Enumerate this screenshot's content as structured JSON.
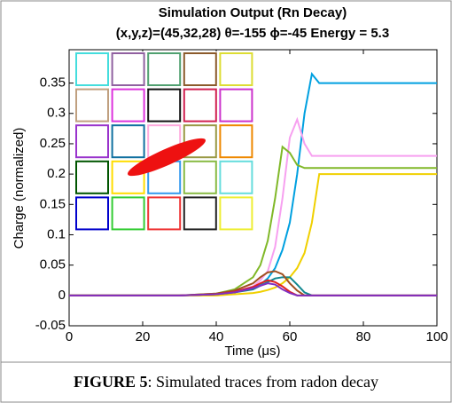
{
  "chart_data": {
    "type": "line",
    "title": "Simulation Output (Rn Decay)",
    "subtitle": "(x,y,z)=(45,32,28) θ=-155 ϕ=-45 Energy = 5.3",
    "x_label": "Time (μs)",
    "y_label": "Charge (normalized)",
    "x": [
      0,
      10,
      20,
      30,
      40,
      45,
      50,
      52,
      54,
      56,
      58,
      60,
      62,
      64,
      66,
      68,
      70,
      80,
      90,
      100
    ],
    "series": [
      {
        "color": "#00a0e0",
        "values": [
          0,
          0,
          0,
          0,
          0.002,
          0.005,
          0.012,
          0.018,
          0.028,
          0.045,
          0.075,
          0.12,
          0.2,
          0.3,
          0.365,
          0.35,
          0.35,
          0.35,
          0.35,
          0.35
        ]
      },
      {
        "color": "#f7a0f0",
        "values": [
          0,
          0,
          0,
          0,
          0.002,
          0.006,
          0.015,
          0.025,
          0.04,
          0.08,
          0.16,
          0.26,
          0.29,
          0.25,
          0.23,
          0.23,
          0.23,
          0.23,
          0.23,
          0.23
        ]
      },
      {
        "color": "#80b828",
        "values": [
          0,
          0,
          0,
          0,
          0.003,
          0.01,
          0.03,
          0.05,
          0.09,
          0.16,
          0.245,
          0.235,
          0.215,
          0.21,
          0.21,
          0.21,
          0.21,
          0.21,
          0.21,
          0.21
        ]
      },
      {
        "color": "#f0d000",
        "values": [
          0,
          0,
          0,
          0,
          0,
          0.002,
          0.004,
          0.006,
          0.009,
          0.013,
          0.02,
          0.03,
          0.045,
          0.07,
          0.12,
          0.2,
          0.2,
          0.2,
          0.2,
          0.2
        ]
      },
      {
        "color": "#108890",
        "values": [
          0,
          0,
          0,
          0,
          0.002,
          0.005,
          0.01,
          0.016,
          0.022,
          0.028,
          0.03,
          0.03,
          0.018,
          0.005,
          0,
          0,
          0,
          0,
          0,
          0
        ]
      },
      {
        "color": "#a05020",
        "values": [
          0,
          0,
          0,
          0,
          0.003,
          0.008,
          0.02,
          0.03,
          0.038,
          0.04,
          0.035,
          0.02,
          0.008,
          0,
          0,
          0,
          0,
          0,
          0,
          0
        ]
      },
      {
        "color": "#e02020",
        "values": [
          0,
          0,
          0,
          0,
          0.002,
          0.006,
          0.014,
          0.02,
          0.025,
          0.022,
          0.015,
          0.006,
          0,
          0,
          0,
          0,
          0,
          0,
          0,
          0
        ]
      },
      {
        "color": "#8030c0",
        "values": [
          0,
          0,
          0,
          0,
          0.002,
          0.005,
          0.012,
          0.016,
          0.02,
          0.018,
          0.01,
          0.004,
          0,
          0,
          0,
          0,
          0,
          0,
          0,
          0
        ]
      }
    ],
    "xlim": [
      0,
      100
    ],
    "xticks": [
      0,
      20,
      40,
      60,
      80,
      100
    ],
    "ylim": [
      -0.05,
      0.405
    ],
    "yticks": [
      -0.05,
      0,
      0.05,
      0.1,
      0.15,
      0.2,
      0.25,
      0.3,
      0.35
    ]
  },
  "caption": {
    "label": "FIGURE 5",
    "text": ": Simulated traces from radon decay"
  }
}
